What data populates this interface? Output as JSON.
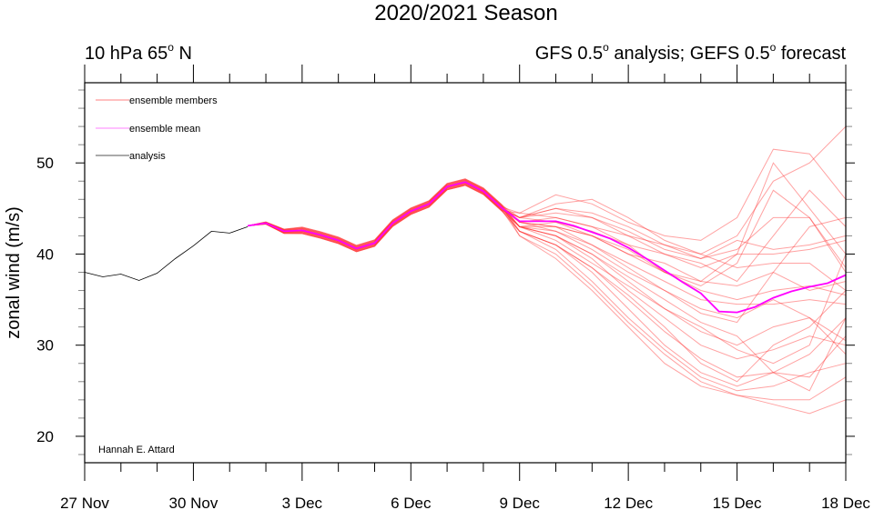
{
  "chart_data": {
    "type": "line",
    "title": "2020/2021 Season",
    "subtitle_left": [
      "10 hPa 65",
      "o",
      " N"
    ],
    "subtitle_right": [
      "GFS 0.5",
      "o",
      " analysis; GEFS 0.5",
      "o",
      " forecast"
    ],
    "ylabel": "zonal wind (m/s)",
    "xlabel": "",
    "credit": "Hannah E. Attard",
    "xlim_days": [
      0,
      21
    ],
    "ylim": [
      17.1,
      58.8
    ],
    "x_ticks": [
      {
        "day": 0,
        "label": "27 Nov"
      },
      {
        "day": 3,
        "label": "30 Nov"
      },
      {
        "day": 6,
        "label": "3 Dec"
      },
      {
        "day": 9,
        "label": "6 Dec"
      },
      {
        "day": 12,
        "label": "9 Dec"
      },
      {
        "day": 15,
        "label": "12 Dec"
      },
      {
        "day": 18,
        "label": "15 Dec"
      },
      {
        "day": 21,
        "label": "18 Dec"
      }
    ],
    "y_ticks": [
      20,
      30,
      40,
      50
    ],
    "legend": {
      "placement": "top-left",
      "entries": [
        {
          "label": "ensemble members",
          "color": "#ff8080"
        },
        {
          "label": "ensemble mean",
          "color": "#ff00ff"
        },
        {
          "label": "analysis",
          "color": "#000000"
        }
      ]
    },
    "colors": {
      "members": "#ff3030",
      "mean": "#ff00ff",
      "analysis": "#000000"
    },
    "analysis": {
      "start_day": 0,
      "step_days": 0.5,
      "values": [
        38.0,
        37.5,
        37.8,
        37.1,
        37.9,
        39.5,
        40.9,
        42.5,
        42.3,
        43.0
      ]
    },
    "ensemble_common": {
      "start_day": 4.5,
      "step_days": 0.5,
      "values": [
        43.1,
        43.4,
        42.5,
        42.6,
        42.1,
        41.5,
        40.6,
        41.2,
        43.4,
        44.7,
        45.5,
        47.4,
        47.9,
        46.9,
        45.1
      ]
    },
    "members": {
      "start_day": 12,
      "step_days": 1,
      "series": [
        [
          44.5,
          46.5,
          45.5,
          43.5,
          42,
          41.5,
          44,
          51.5,
          51,
          46
        ],
        [
          44,
          45.5,
          46,
          44,
          41.5,
          40,
          42,
          48,
          50,
          54
        ],
        [
          43.5,
          44,
          43,
          41,
          38,
          37,
          40,
          50,
          45,
          40
        ],
        [
          44,
          45,
          44,
          42,
          40,
          39,
          37,
          42,
          47,
          43
        ],
        [
          43.5,
          43,
          42,
          40,
          38,
          36.5,
          39,
          47,
          44,
          38.5
        ],
        [
          44,
          44.5,
          44,
          42.5,
          40.5,
          39.5,
          41.5,
          40.5,
          41,
          42
        ],
        [
          43,
          43.5,
          42.5,
          41,
          40,
          38.5,
          40,
          40,
          40.5,
          41.5
        ],
        [
          44.5,
          44,
          43,
          42,
          41,
          40,
          38.5,
          39,
          39,
          36
        ],
        [
          43,
          43,
          42,
          40.5,
          38,
          36,
          35,
          36,
          36.5,
          35.5
        ],
        [
          43.5,
          43,
          41,
          39,
          37,
          35,
          34.5,
          34.5,
          35,
          34.5
        ],
        [
          43,
          42.5,
          41,
          38.5,
          36,
          34,
          33,
          35,
          33,
          30.5
        ],
        [
          43,
          42,
          40,
          37,
          34,
          31.5,
          30,
          32,
          33,
          29
        ],
        [
          43,
          42,
          39.5,
          36,
          33,
          30,
          28.5,
          29.5,
          31,
          30
        ],
        [
          42.5,
          41,
          38.5,
          35,
          31.5,
          28.5,
          26.5,
          27,
          29,
          33
        ],
        [
          42.5,
          41,
          38,
          34,
          30,
          27,
          25.5,
          27,
          26.5,
          31
        ],
        [
          42.5,
          40.5,
          37,
          33,
          29.5,
          26.5,
          25,
          25.5,
          27,
          28
        ],
        [
          42,
          40,
          36.5,
          32.5,
          29,
          26,
          24.5,
          24,
          24,
          26.5
        ],
        [
          42,
          39.5,
          36,
          32,
          28,
          25.5,
          24.5,
          23.5,
          22.5,
          24
        ],
        [
          43,
          41.5,
          39,
          36.5,
          34,
          32,
          29.5,
          28,
          30,
          40
        ],
        [
          43.5,
          42.5,
          40.5,
          38,
          36,
          33.5,
          32.5,
          38,
          43,
          44
        ],
        [
          44,
          43.5,
          42,
          40,
          39,
          37,
          36.5,
          38,
          36,
          37
        ],
        [
          43,
          42,
          40,
          37.5,
          35,
          32.5,
          31,
          27,
          25,
          33
        ],
        [
          42.5,
          41,
          38.5,
          35.5,
          32,
          28,
          26,
          30,
          32,
          36
        ],
        [
          44,
          45,
          44.5,
          43,
          41,
          39.5,
          40.5,
          44,
          44,
          38
        ]
      ]
    },
    "mean": {
      "start_day": 4.5,
      "step_days": 0.5,
      "values": [
        43.1,
        43.4,
        42.5,
        42.6,
        42.1,
        41.5,
        40.6,
        41.2,
        43.4,
        44.7,
        45.5,
        47.4,
        47.9,
        46.9,
        45.1,
        43.6,
        43.6,
        43.6,
        43.1,
        42.4,
        41.7,
        40.7,
        39.5,
        38.2,
        36.9,
        35.7,
        33.7,
        33.6,
        34.2,
        35.2,
        35.9,
        36.4,
        36.8,
        37.7
      ]
    }
  }
}
